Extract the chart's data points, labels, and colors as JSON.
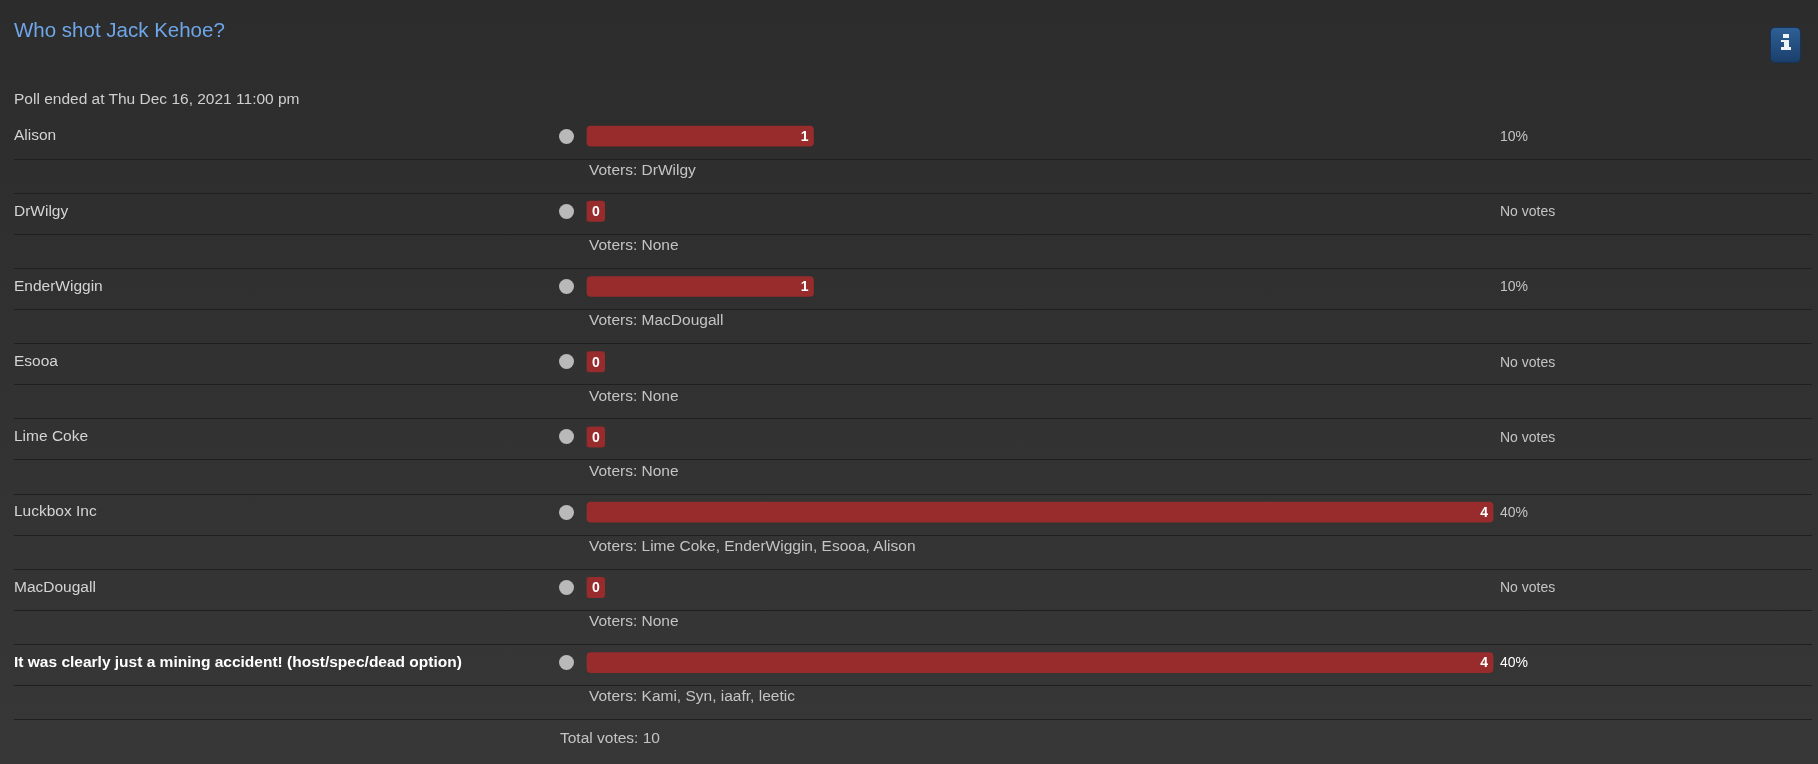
{
  "chart_data": {
    "type": "bar",
    "orientation": "horizontal",
    "title": "Who shot Jack Kehoe?",
    "subtitle": "Poll ended at Thu Dec 16, 2021 11:00 pm",
    "categories": [
      "Alison",
      "DrWilgy",
      "EnderWiggin",
      "Esooa",
      "Lime Coke",
      "Luckbox Inc",
      "MacDougall",
      "It was clearly just a mining accident! (host/spec/dead option)"
    ],
    "values": [
      1,
      0,
      1,
      0,
      0,
      4,
      0,
      4
    ],
    "color": "#982b2b",
    "xlim": [
      0,
      4
    ],
    "data_labels": true,
    "tick_labels": "y",
    "annotations": [
      "10%",
      "No votes",
      "10%",
      "No votes",
      "No votes",
      "40%",
      "No votes",
      "40%",
      "Voters: DrWilgy",
      "Voters: None",
      "Voters: MacDougall",
      "Voters: None",
      "Voters: None",
      "Voters: Lime Coke, EnderWiggin, Esooa, Alison",
      "Voters: None",
      "Voters: Kami, Syn, iaafr, leetic",
      "Total votes: 10"
    ]
  }
}
